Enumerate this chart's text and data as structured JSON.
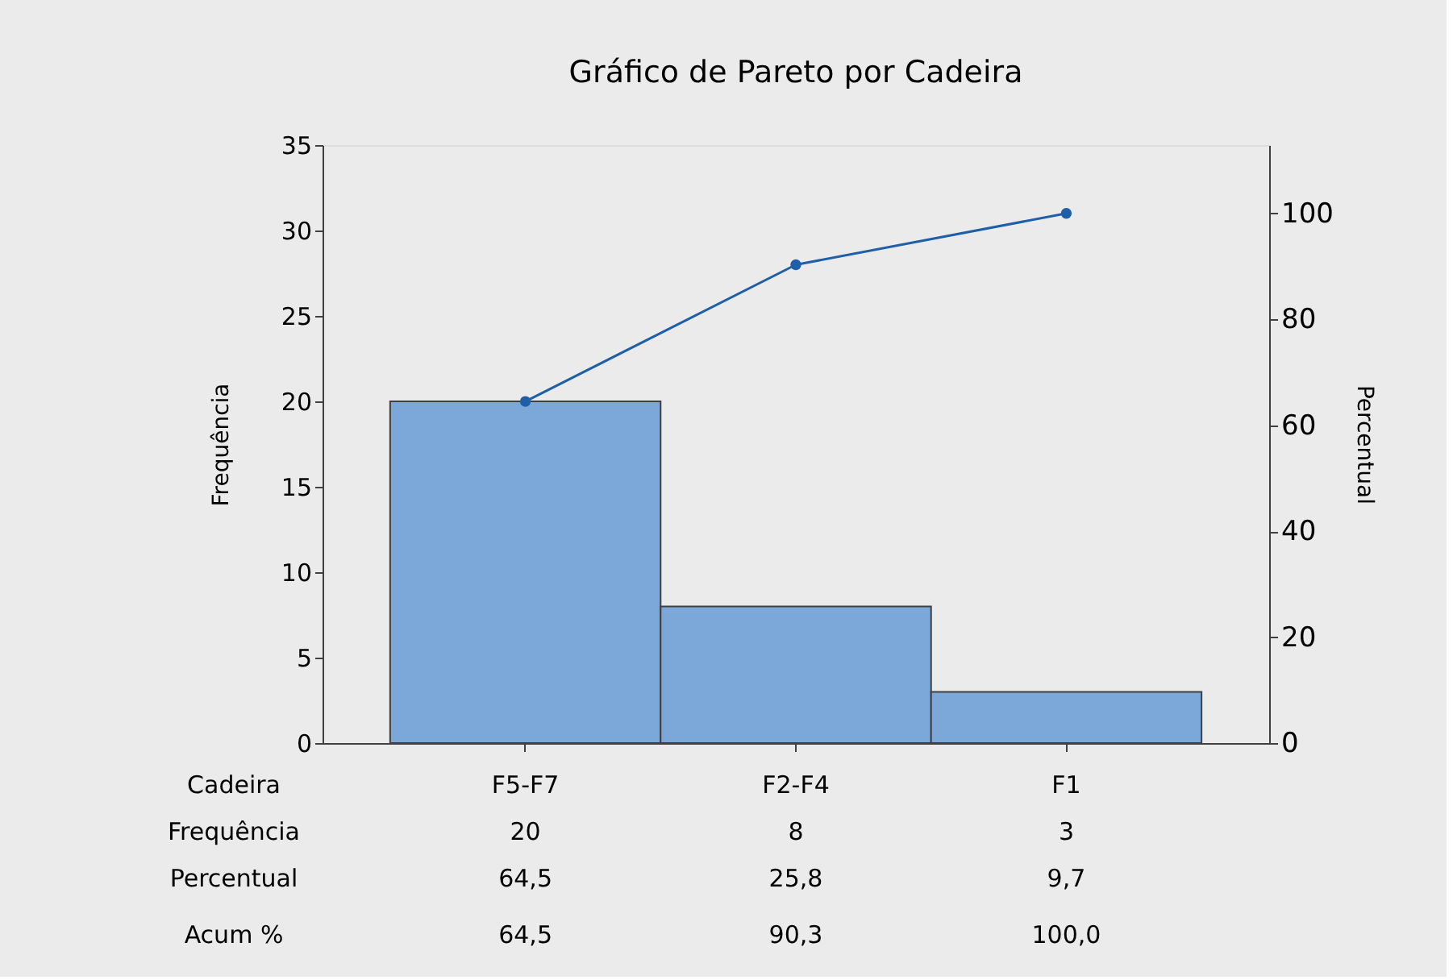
{
  "chart_data": {
    "type": "bar",
    "title": "Gráfico de Pareto por Cadeira",
    "xlabel": "Cadeira",
    "ylabel": "Frequência",
    "y2label": "Percentual",
    "categories": [
      "F5-F7",
      "F2-F4",
      "F1"
    ],
    "series": [
      {
        "color": "#7ba7d9",
        "values": [
          20,
          8,
          3
        ],
        "value_labels": [
          "20",
          "8",
          "3"
        ]
      },
      {
        "type": "line",
        "axis": "y2",
        "color": "#1f5fa8",
        "values": [
          64.5,
          90.3,
          100.0
        ],
        "value_labels": [
          "64,5",
          "90,3",
          "100,0"
        ],
        "marker": "circle"
      }
    ],
    "annotations": [
      "Frequência",
      "Percentual",
      "64,5",
      "25,8",
      "9,7",
      "Acum %"
    ],
    "ylim": [
      0,
      35
    ],
    "yticks": [
      0,
      5,
      10,
      15,
      20,
      25,
      30,
      35
    ],
    "y2lim": [
      0,
      112.9
    ],
    "y2ticks": [
      0,
      20,
      40,
      60,
      80,
      100
    ],
    "data_labels": true,
    "grid": false,
    "legend": false
  }
}
